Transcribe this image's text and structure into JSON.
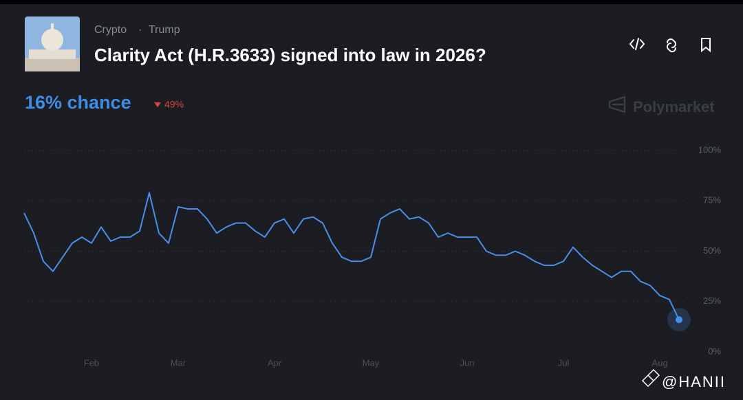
{
  "header": {
    "tags": [
      "Crypto",
      "Trump"
    ],
    "title": "Clarity Act (H.R.3633) signed into law in 2026?",
    "chance": "16% chance",
    "change": "49%",
    "brand": "Polymarket",
    "watermark": "@HANII"
  },
  "chart_data": {
    "type": "line",
    "categories": [
      null,
      null,
      null,
      null,
      null,
      null,
      null,
      "Feb",
      null,
      null,
      null,
      null,
      null,
      null,
      null,
      null,
      "Mar",
      null,
      null,
      null,
      null,
      null,
      null,
      null,
      null,
      null,
      "Apr",
      null,
      null,
      null,
      null,
      null,
      null,
      null,
      null,
      null,
      "May",
      null,
      null,
      null,
      null,
      null,
      null,
      null,
      null,
      null,
      "Jun",
      null,
      null,
      null,
      null,
      null,
      null,
      null,
      null,
      null,
      "Jul",
      null,
      null,
      null,
      null,
      null,
      null,
      null,
      null,
      null,
      "Aug",
      null,
      null
    ],
    "series": [
      {
        "color": "#4a8fe7",
        "values": [
          69,
          59,
          45,
          40,
          47,
          54,
          57,
          54,
          62,
          55,
          57,
          57,
          60,
          79,
          59,
          54,
          72,
          71,
          71,
          66,
          59,
          62,
          64,
          64,
          60,
          57,
          64,
          66,
          59,
          66,
          67,
          64,
          54,
          47,
          45,
          45,
          47,
          66,
          69,
          71,
          66,
          67,
          64,
          57,
          59,
          57,
          57,
          57,
          50,
          48,
          48,
          50,
          48,
          45,
          43,
          43,
          45,
          52,
          47,
          43,
          40,
          37,
          40,
          40,
          35,
          33,
          28,
          26,
          16
        ]
      }
    ],
    "ylim": [
      0,
      100
    ],
    "yticks": [
      {
        "value": 0,
        "label": "0%"
      },
      {
        "value": 25,
        "label": "25%"
      },
      {
        "value": 50,
        "label": "50%"
      },
      {
        "value": 75,
        "label": "75%"
      },
      {
        "value": 100,
        "label": "100%"
      }
    ],
    "grid": true
  }
}
